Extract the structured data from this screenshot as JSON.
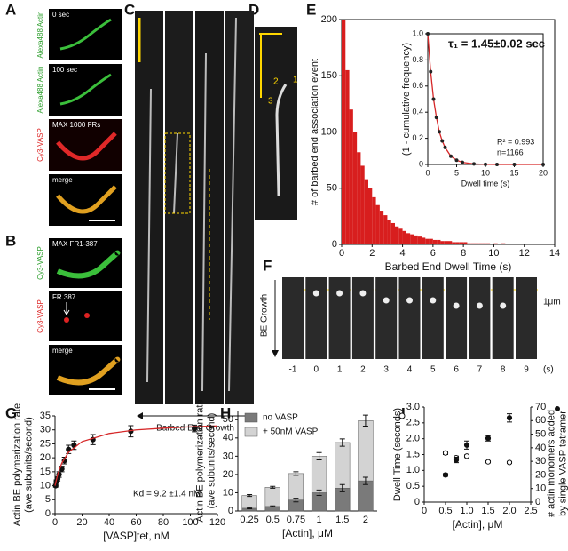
{
  "panel_letters": [
    "A",
    "B",
    "C",
    "D",
    "E",
    "F",
    "G",
    "H",
    "I"
  ],
  "panel_a": {
    "channel_labels": [
      "Alexa488 Actin",
      "Alexa488 Actin",
      "Cy3-VASP"
    ],
    "image_labels": [
      "0 sec",
      "100 sec",
      "MAX 1000 FRs",
      "merge"
    ]
  },
  "panel_b": {
    "channel_labels": [
      "Cy3-VASP",
      "Cy3-VASP"
    ],
    "image_labels": [
      "MAX FR1-387",
      "FR 387",
      "merge"
    ]
  },
  "panel_c": {
    "axis_label": "Barbed End Growth"
  },
  "panel_d": {
    "markers": [
      "1",
      "2",
      "3"
    ]
  },
  "panel_f": {
    "axis_label": "BE Growth",
    "scale_label": "1μm",
    "frames": [
      -1,
      0,
      1,
      2,
      3,
      4,
      5,
      6,
      7,
      8,
      9
    ],
    "unit": "(s)"
  },
  "chart_data": [
    {
      "type": "histogram",
      "xlabel": "Barbed End Dwell Time (s)",
      "ylabel": "# of barbed end association event",
      "color": "#d81e1e",
      "frame": true,
      "bins": [
        0,
        0.25,
        0.5,
        0.75,
        1,
        1.25,
        1.5,
        1.75,
        2,
        2.25,
        2.5,
        2.75,
        3,
        3.25,
        3.5,
        3.75,
        4,
        4.25,
        4.5,
        4.75,
        5,
        5.25,
        5.5,
        5.75,
        6,
        6.25,
        6.5,
        6.75,
        7,
        7.25,
        7.5,
        7.75,
        8,
        8.25,
        8.5,
        8.75,
        9,
        9.25,
        9.5,
        9.75,
        10,
        10.25,
        10.5,
        10.75,
        11
      ],
      "values": [
        200,
        155,
        120,
        100,
        82,
        70,
        58,
        50,
        42,
        35,
        30,
        26,
        22,
        19,
        16,
        14,
        12,
        10,
        9,
        8,
        7,
        6,
        5,
        5,
        4,
        4,
        3,
        3,
        3,
        2,
        2,
        2,
        2,
        1,
        1,
        1,
        1,
        1,
        1,
        0,
        1,
        0,
        1,
        0
      ],
      "xlim": [
        0,
        14
      ],
      "xticks": [
        0,
        2,
        4,
        6,
        8,
        10,
        12,
        14
      ],
      "ylim": [
        0,
        200
      ],
      "yticks": [
        0,
        50,
        100,
        150,
        200
      ]
    },
    {
      "type": "line",
      "xlabel": "Dwell time (s)",
      "ylabel": "(1 - cumulative frequency)",
      "frame": true,
      "annotations": [
        "τ₁ = 1.45±0.02 sec",
        "R² = 0.993",
        "n=1166"
      ],
      "x": [
        0,
        0.5,
        1,
        1.5,
        2,
        2.5,
        3,
        4,
        5,
        6,
        8,
        10,
        12,
        15,
        20
      ],
      "series": [
        {
          "values": [
            1,
            0.71,
            0.5,
            0.36,
            0.25,
            0.18,
            0.13,
            0.063,
            0.032,
            0.016,
            0.004,
            0.001,
            0,
            0,
            0
          ],
          "line_color": "#d62728",
          "marker_color": "#222"
        }
      ],
      "xlim": [
        0,
        20
      ],
      "xticks": [
        0,
        5,
        10,
        15,
        20
      ],
      "ylim": [
        0,
        1
      ],
      "yticks": [
        0,
        0.2,
        0.4,
        0.6,
        0.8,
        {
          "value": 1,
          "label": "1.0"
        }
      ]
    },
    {
      "type": "scatter",
      "xlabel": "[VASP]tet, nM",
      "ylabel": [
        "Actin BE polymerization rate",
        "(ave subunits/second)"
      ],
      "annotations": [
        "Kd = 9.2 ±1.4 nM"
      ],
      "series": [
        {
          "x": [
            0.5,
            1,
            2,
            3,
            5,
            7,
            10,
            14,
            28,
            56,
            103
          ],
          "values": [
            10,
            11.5,
            12.5,
            14,
            16,
            19,
            23,
            24.5,
            26.5,
            29.5,
            30.5
          ],
          "errors": [
            0.5,
            0.6,
            0.8,
            1,
            1,
            1.2,
            1.5,
            1.5,
            1.8,
            2,
            1.2
          ],
          "marker_color": "#111"
        },
        {
          "x": [
            0,
            2,
            5,
            10,
            20,
            40,
            60,
            80,
            100,
            120
          ],
          "values": [
            10,
            14.1,
            18.1,
            22,
            25.8,
            28.7,
            30,
            30.6,
            31.1,
            31.4
          ],
          "line_color": "#d62728"
        }
      ],
      "xlim": [
        0,
        120
      ],
      "xticks": [
        0,
        20,
        40,
        60,
        80,
        100,
        120
      ],
      "ylim": [
        0,
        35
      ],
      "yticks": [
        0,
        5,
        10,
        15,
        20,
        25,
        30,
        35
      ]
    },
    {
      "type": "bar",
      "xlabel": "[Actin], μM",
      "ylabel": [
        "Actin BE polymerization rate",
        "(ave subunits/second)"
      ],
      "legend": "upper left",
      "categories": [
        "0.25",
        "0.5",
        "0.75",
        "1",
        "1.5",
        "2"
      ],
      "series": [
        {
          "name": "no VASP",
          "color": "#7a7a7a",
          "values": [
            1.5,
            2.5,
            6,
            10,
            12.5,
            16.5
          ],
          "errors": [
            0.3,
            0.3,
            1,
            1.5,
            2,
            2
          ]
        },
        {
          "name": "+ 50nM VASP",
          "color": "#d3d3d3",
          "values": [
            8.5,
            13,
            20.5,
            30,
            37.5,
            49.5
          ],
          "errors": [
            0.5,
            0.5,
            1,
            2,
            2,
            3
          ]
        }
      ],
      "ylim": [
        0,
        55
      ],
      "yticks": [
        0,
        10,
        20,
        30,
        40,
        50
      ]
    },
    {
      "type": "scatter",
      "xlabel": "[Actin], μM",
      "ylabel": [
        "Dwell Time (seconds)"
      ],
      "y2label": [
        "# actin monomers added",
        "by single VASP tetramer"
      ],
      "series": [
        {
          "x": [
            0.5,
            0.75,
            1,
            1.5,
            2
          ],
          "values": [
            1.55,
            1.4,
            1.45,
            1.27,
            1.25
          ],
          "errors": [
            0.05,
            0.05,
            0.04,
            0.03,
            0.03
          ],
          "marker_color": "#111",
          "marker": "open"
        },
        {
          "x": [
            0.5,
            0.75,
            1,
            1.5,
            2
          ],
          "values": [
            20,
            31,
            42,
            47,
            62
          ],
          "errors": [
            1,
            2,
            3,
            2,
            3
          ],
          "marker_color": "#111",
          "axis": "y2"
        }
      ],
      "xlim": [
        0,
        2.5
      ],
      "xticks": [
        0,
        0.5,
        {
          "value": 1,
          "label": "1.0"
        },
        1.5,
        {
          "value": 2,
          "label": "2.0"
        },
        2.5
      ],
      "ylim": [
        0,
        3
      ],
      "yticks": [
        0,
        0.5,
        {
          "value": 1,
          "label": "1.0"
        },
        1.5,
        {
          "value": 2,
          "label": "2.0"
        },
        2.5,
        {
          "value": 3,
          "label": "3.0"
        }
      ],
      "y2lim": [
        0,
        70
      ],
      "y2ticks": [
        0,
        10,
        20,
        30,
        40,
        50,
        60,
        70
      ]
    }
  ]
}
